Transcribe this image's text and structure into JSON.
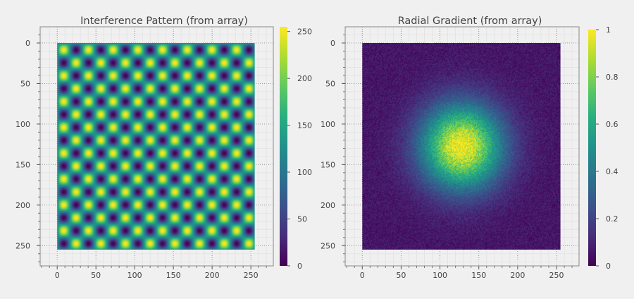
{
  "figure": {
    "background": "#f0f0f0"
  },
  "chart_data": [
    {
      "type": "heatmap",
      "title": "Interference Pattern (from array)",
      "xlabel": "",
      "ylabel": "",
      "x_ticks": [
        0,
        50,
        100,
        150,
        200,
        250
      ],
      "y_ticks": [
        0,
        50,
        100,
        150,
        200,
        250
      ],
      "xlim": [
        -22,
        279
      ],
      "ylim": [
        275,
        -20
      ],
      "image_extent": [
        0,
        255,
        255,
        0
      ],
      "grid": true,
      "colormap": "viridis",
      "colorbar": {
        "range": [
          0,
          255
        ],
        "ticks": [
          0,
          50,
          100,
          150,
          200,
          250
        ]
      },
      "pattern": "sin(x*2π/32)*sin(y*2π/32), scaled to 0–255, 256×256 array"
    },
    {
      "type": "heatmap",
      "title": "Radial Gradient (from array)",
      "xlabel": "",
      "ylabel": "",
      "x_ticks": [
        0,
        50,
        100,
        150,
        200,
        250
      ],
      "y_ticks": [
        0,
        50,
        100,
        150,
        200,
        250
      ],
      "xlim": [
        -22,
        279
      ],
      "ylim": [
        275,
        -20
      ],
      "image_extent": [
        0,
        255,
        255,
        0
      ],
      "grid": true,
      "colormap": "viridis",
      "colorbar": {
        "range": [
          0,
          1
        ],
        "ticks": [
          0,
          0.2,
          0.4,
          0.6,
          0.8,
          1
        ]
      },
      "pattern": "Gaussian peak centered at (128,128) with noise, 256×256 array"
    }
  ]
}
